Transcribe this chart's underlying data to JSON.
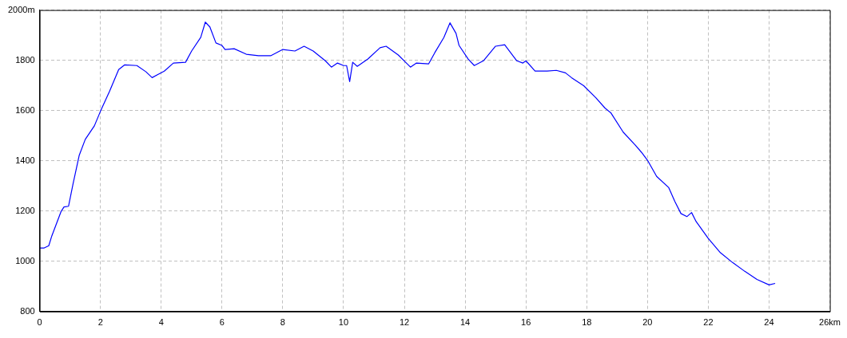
{
  "chart_data": {
    "type": "line",
    "x": [
      0,
      0.15,
      0.3,
      0.4,
      0.7,
      0.8,
      0.95,
      1.1,
      1.3,
      1.5,
      1.8,
      2.0,
      2.3,
      2.6,
      2.8,
      3.2,
      3.5,
      3.7,
      3.9,
      4.1,
      4.4,
      4.8,
      5.0,
      5.3,
      5.45,
      5.6,
      5.8,
      6.0,
      6.1,
      6.4,
      6.8,
      7.2,
      7.6,
      8.0,
      8.4,
      8.7,
      9.0,
      9.4,
      9.6,
      9.8,
      10.0,
      10.1,
      10.2,
      10.3,
      10.45,
      10.8,
      11.2,
      11.4,
      11.8,
      12.2,
      12.4,
      12.8,
      13.0,
      13.3,
      13.5,
      13.7,
      13.8,
      14.1,
      14.3,
      14.6,
      15.0,
      15.3,
      15.7,
      15.9,
      16.0,
      16.3,
      16.7,
      17.0,
      17.3,
      17.5,
      17.9,
      18.3,
      18.6,
      18.8,
      19.2,
      19.6,
      19.8,
      20.0,
      20.3,
      20.7,
      20.9,
      21.1,
      21.3,
      21.45,
      21.6,
      22.0,
      22.4,
      22.8,
      23.2,
      23.6,
      24.0,
      24.2
    ],
    "series": [
      {
        "color": "#0000ff",
        "values": [
          1053,
          1053,
          1062,
          1101,
          1197,
          1216,
          1219,
          1309,
          1421,
          1485,
          1539,
          1597,
          1677,
          1763,
          1782,
          1779,
          1754,
          1731,
          1744,
          1757,
          1789,
          1792,
          1837,
          1891,
          1952,
          1933,
          1869,
          1859,
          1843,
          1846,
          1824,
          1818,
          1818,
          1843,
          1837,
          1856,
          1837,
          1798,
          1773,
          1789,
          1779,
          1779,
          1715,
          1792,
          1776,
          1805,
          1850,
          1856,
          1821,
          1773,
          1789,
          1786,
          1830,
          1891,
          1949,
          1907,
          1859,
          1805,
          1779,
          1798,
          1856,
          1862,
          1798,
          1789,
          1798,
          1757,
          1757,
          1760,
          1750,
          1731,
          1699,
          1651,
          1610,
          1590,
          1514,
          1462,
          1434,
          1402,
          1338,
          1293,
          1238,
          1190,
          1178,
          1194,
          1158,
          1091,
          1034,
          995,
          960,
          928,
          906,
          912
        ]
      }
    ],
    "xlim": [
      0,
      26
    ],
    "xticks": [
      0,
      2,
      4,
      6,
      8,
      10,
      12,
      14,
      16,
      18,
      20,
      22,
      24,
      {
        "value": 26,
        "label": "26km"
      }
    ],
    "ylim": [
      800,
      2000
    ],
    "yticks": [
      800,
      1000,
      1200,
      1400,
      1600,
      1800,
      {
        "value": 2000,
        "label": "2000m"
      }
    ],
    "grid": true,
    "legend": false,
    "marker": "none",
    "line_style": "solid"
  }
}
